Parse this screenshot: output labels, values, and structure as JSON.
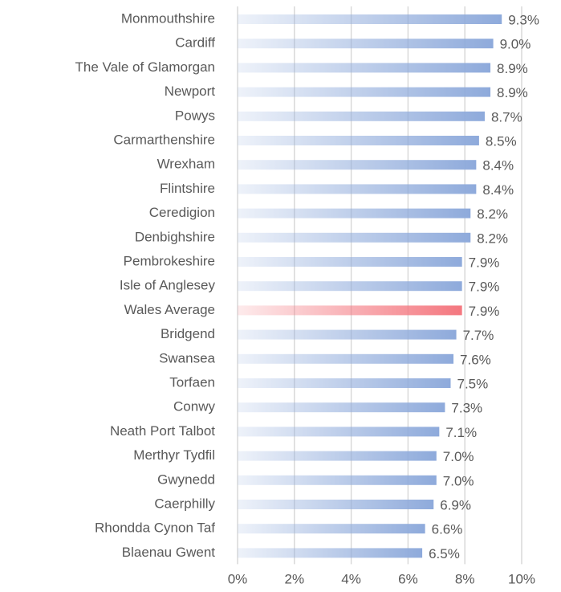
{
  "chart_data": {
    "type": "barh",
    "categories": [
      "Monmouthshire",
      "Cardiff",
      "The Vale of Glamorgan",
      "Newport",
      "Powys",
      "Carmarthenshire",
      "Wrexham",
      "Flintshire",
      "Ceredigion",
      "Denbighshire",
      "Pembrokeshire",
      "Isle of Anglesey",
      "Wales Average",
      "Bridgend",
      "Swansea",
      "Torfaen",
      "Conwy",
      "Neath Port Talbot",
      "Merthyr Tydfil",
      "Gwynedd",
      "Caerphilly",
      "Rhondda Cynon Taf",
      "Blaenau Gwent"
    ],
    "values": [
      9.3,
      9.0,
      8.9,
      8.9,
      8.7,
      8.5,
      8.4,
      8.4,
      8.2,
      8.2,
      7.9,
      7.9,
      7.9,
      7.7,
      7.6,
      7.5,
      7.3,
      7.1,
      7.0,
      7.0,
      6.9,
      6.6,
      6.5
    ],
    "value_labels": [
      "9.3%",
      "9.0%",
      "8.9%",
      "8.9%",
      "8.7%",
      "8.5%",
      "8.4%",
      "8.4%",
      "8.2%",
      "8.2%",
      "7.9%",
      "7.9%",
      "7.9%",
      "7.7%",
      "7.6%",
      "7.5%",
      "7.3%",
      "7.1%",
      "7.0%",
      "7.0%",
      "6.9%",
      "6.6%",
      "6.5%"
    ],
    "colors": [
      "#8eaadb",
      "#8eaadb",
      "#8eaadb",
      "#8eaadb",
      "#8eaadb",
      "#8eaadb",
      "#8eaadb",
      "#8eaadb",
      "#8eaadb",
      "#8eaadb",
      "#8eaadb",
      "#8eaadb",
      "#f4777f",
      "#8eaadb",
      "#8eaadb",
      "#8eaadb",
      "#8eaadb",
      "#8eaadb",
      "#8eaadb",
      "#8eaadb",
      "#8eaadb",
      "#8eaadb",
      "#8eaadb"
    ],
    "xlim": [
      0,
      10
    ],
    "xticks": [
      {
        "value": 0,
        "label": "0%"
      },
      {
        "value": 2,
        "label": "2%"
      },
      {
        "value": 4,
        "label": "4%"
      },
      {
        "value": 6,
        "label": "6%"
      },
      {
        "value": 8,
        "label": "8%"
      },
      {
        "value": 10,
        "label": "10%"
      }
    ],
    "grid": true
  }
}
